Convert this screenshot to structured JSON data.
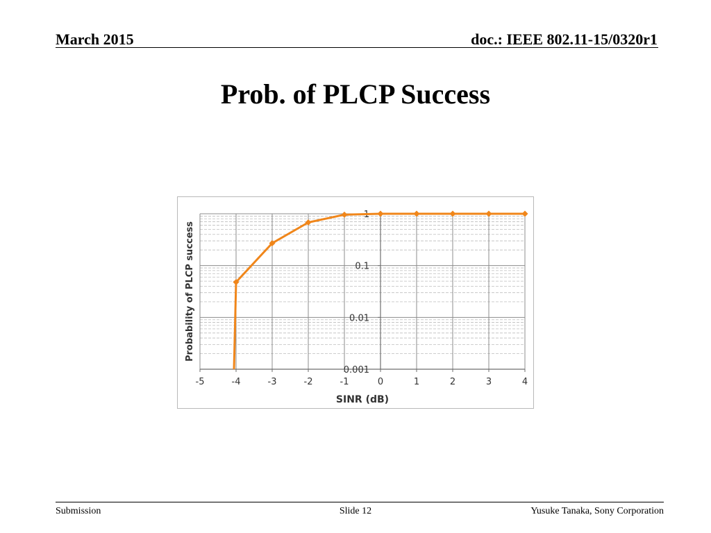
{
  "header": {
    "date": "March 2015",
    "doc": "doc.: IEEE 802.11-15/0320r1"
  },
  "slide": {
    "title": "Prob. of PLCP Success"
  },
  "footer": {
    "left": "Submission",
    "center": "Slide 12",
    "right": "Yusuke Tanaka, Sony Corporation"
  },
  "chart_data": {
    "type": "line",
    "xlabel": "SINR (dB)",
    "ylabel": "Probability of PLCP success",
    "xlim": [
      -5,
      4
    ],
    "ylim": [
      0.001,
      1
    ],
    "yscale": "log",
    "grid": true,
    "x_ticks": [
      "-5",
      "-4",
      "-3",
      "-2",
      "-1",
      "0",
      "1",
      "2",
      "3",
      "4"
    ],
    "y_ticks": [
      "0.001",
      "0.01",
      "0.1",
      "1"
    ],
    "series": [
      {
        "color": "#f0861a",
        "x": [
          -4,
          -3,
          -2,
          -1,
          0,
          1,
          2,
          3,
          4
        ],
        "y": [
          0.048,
          0.27,
          0.68,
          0.96,
          1,
          1,
          1,
          1,
          1
        ]
      }
    ]
  }
}
